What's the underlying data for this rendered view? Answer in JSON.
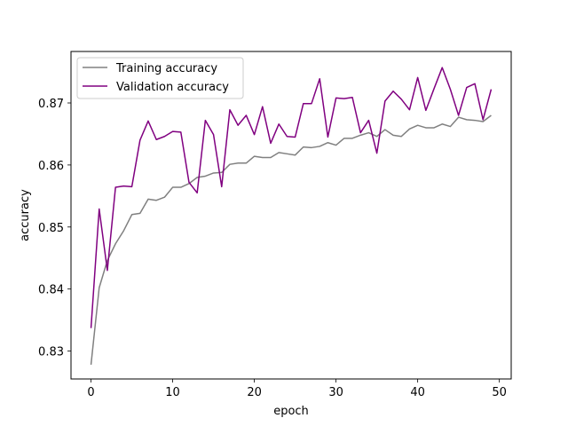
{
  "chart_data": {
    "type": "line",
    "title": "",
    "xlabel": "epoch",
    "ylabel": "accuracy",
    "xlim": [
      -2.45,
      51.45
    ],
    "ylim": [
      0.8255,
      0.8783
    ],
    "xticks": [
      0,
      10,
      20,
      30,
      40,
      50
    ],
    "yticks": [
      0.83,
      0.84,
      0.85,
      0.86,
      0.87
    ],
    "ytick_labels": [
      "0.83",
      "0.84",
      "0.85",
      "0.86",
      "0.87"
    ],
    "legend_position": "upper-left",
    "grid": false,
    "x": [
      0,
      1,
      2,
      3,
      4,
      5,
      6,
      7,
      8,
      9,
      10,
      11,
      12,
      13,
      14,
      15,
      16,
      17,
      18,
      19,
      20,
      21,
      22,
      23,
      24,
      25,
      26,
      27,
      28,
      29,
      30,
      31,
      32,
      33,
      34,
      35,
      36,
      37,
      38,
      39,
      40,
      41,
      42,
      43,
      44,
      45,
      46,
      47,
      48,
      49
    ],
    "series": [
      {
        "name": "Training accuracy",
        "color": "#808080",
        "values": [
          0.8278,
          0.8402,
          0.8446,
          0.8473,
          0.8494,
          0.852,
          0.8522,
          0.8545,
          0.8543,
          0.8548,
          0.8564,
          0.8564,
          0.857,
          0.858,
          0.8582,
          0.8587,
          0.8588,
          0.8601,
          0.8603,
          0.8603,
          0.8614,
          0.8612,
          0.8612,
          0.862,
          0.8618,
          0.8616,
          0.8629,
          0.8628,
          0.863,
          0.8636,
          0.8632,
          0.8643,
          0.8643,
          0.8648,
          0.8652,
          0.8646,
          0.8657,
          0.8648,
          0.8646,
          0.8658,
          0.8664,
          0.866,
          0.866,
          0.8666,
          0.8662,
          0.8677,
          0.8673,
          0.8672,
          0.867,
          0.868
        ]
      },
      {
        "name": "Validation accuracy",
        "color": "#800080",
        "values": [
          0.8337,
          0.8529,
          0.843,
          0.8564,
          0.8566,
          0.8565,
          0.864,
          0.8671,
          0.8641,
          0.8646,
          0.8654,
          0.8653,
          0.8572,
          0.8555,
          0.8672,
          0.8649,
          0.8565,
          0.8689,
          0.8664,
          0.868,
          0.8649,
          0.8694,
          0.8635,
          0.8666,
          0.8646,
          0.8645,
          0.8699,
          0.8699,
          0.8739,
          0.8645,
          0.8708,
          0.8707,
          0.8709,
          0.8652,
          0.8672,
          0.8619,
          0.8703,
          0.8719,
          0.8706,
          0.8689,
          0.8741,
          0.8688,
          0.8723,
          0.8757,
          0.8722,
          0.868,
          0.8725,
          0.8731,
          0.8673,
          0.8722
        ]
      }
    ]
  }
}
